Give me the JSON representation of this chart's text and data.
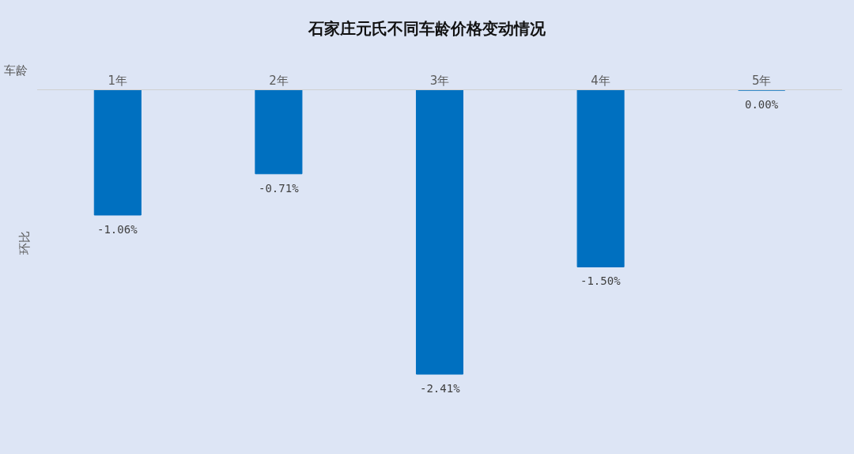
{
  "chart_data": {
    "type": "bar",
    "title": "石家庄元氏不同车龄价格变动情况",
    "xlabel": "车龄",
    "ylabel": "环比",
    "categories": [
      "1年",
      "2年",
      "3年",
      "4年",
      "5年"
    ],
    "values": [
      -1.06,
      -0.71,
      -2.41,
      -1.5,
      0.0
    ],
    "value_labels": [
      "-1.06%",
      "-0.71%",
      "-2.41%",
      "-1.50%",
      "0.00%"
    ],
    "color": "#0070c0",
    "grid": false,
    "legend": false
  }
}
